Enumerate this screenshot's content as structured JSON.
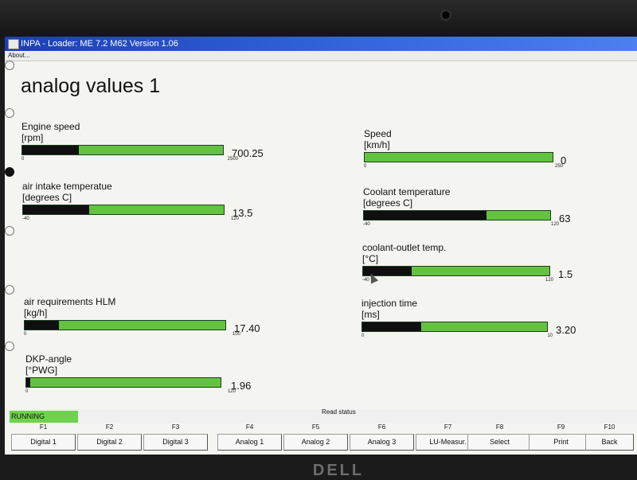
{
  "window": {
    "title": "INPA - Loader:  ME 7.2 M62 Version 1.06",
    "menu_about": "About..."
  },
  "page": {
    "title": "analog values 1"
  },
  "gauges": {
    "engine_speed": {
      "label": "Engine speed",
      "unit": "[rpm]",
      "min": "0",
      "max": "2500",
      "value": "700.25",
      "level": 0.28
    },
    "air_intake_temp": {
      "label": "air intake temperatue",
      "unit": "[degrees C]",
      "min": "-40",
      "max": "120",
      "value": "13.5",
      "level": 0.33
    },
    "air_requirements": {
      "label": "air requirements HLM",
      "unit": "[kg/h]",
      "min": "0",
      "max": "100",
      "value": "17.40",
      "level": 0.17
    },
    "dkp_angle": {
      "label": "DKP-angle",
      "unit": "[°PWG]",
      "min": "0",
      "max": "120",
      "value": "1.96",
      "level": 0.02
    },
    "speed": {
      "label": "Speed",
      "unit": "[km/h]",
      "min": "0",
      "max": "250",
      "value": "0",
      "level": 0.0
    },
    "coolant_temp": {
      "label": "Coolant temperature",
      "unit": "[degrees C]",
      "min": "-40",
      "max": "120",
      "value": "63",
      "level": 0.66
    },
    "coolant_outlet": {
      "label": "coolant-outlet temp.",
      "unit": "[°C]",
      "min": "-40",
      "max": "120",
      "value": "1.5",
      "level": 0.26
    },
    "injection_time": {
      "label": "injection time",
      "unit": "[ms]",
      "min": "0",
      "max": "10",
      "value": "3.20",
      "level": 0.32
    }
  },
  "status": {
    "running": "RUNNING",
    "read_status": "Read status"
  },
  "function_keys": [
    {
      "key": "F1",
      "label": "Digital 1"
    },
    {
      "key": "F2",
      "label": "Digital 2"
    },
    {
      "key": "F3",
      "label": "Digital 3"
    },
    {
      "key": "F4",
      "label": "Analog 1"
    },
    {
      "key": "F5",
      "label": "Analog 2"
    },
    {
      "key": "F6",
      "label": "Analog 3"
    },
    {
      "key": "F7",
      "label": "LU-Measur."
    },
    {
      "key": "F8",
      "label": "Select"
    },
    {
      "key": "F9",
      "label": "Print"
    },
    {
      "key": "F10",
      "label": "Back"
    }
  ],
  "monitor": {
    "brand": "DELL"
  },
  "colors": {
    "bar_green": "#63c33f",
    "bar_fill": "#0f0f0f",
    "title_blue": "#1b3fb6",
    "running_green": "#6fd24c"
  }
}
